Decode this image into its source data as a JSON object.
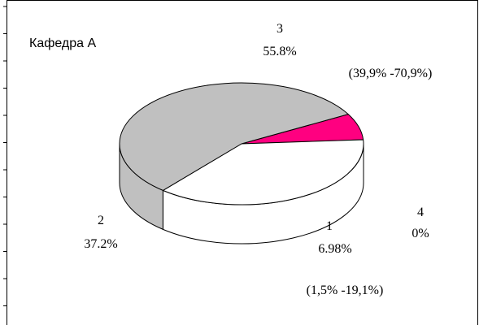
{
  "chart_data": {
    "type": "pie",
    "title": "Кафедра А",
    "slices": [
      {
        "category": "1",
        "value": 6.98,
        "value_label": "6.98%",
        "color": "#ff0080",
        "interval": "(1,5%  -19,1%)"
      },
      {
        "category": "2",
        "value": 37.2,
        "value_label": "37.2%",
        "color": "#ffffff"
      },
      {
        "category": "3",
        "value": 55.8,
        "value_label": "55.8%",
        "color": "#c0c0c0",
        "interval": "(39,9% -70,9%)"
      },
      {
        "category": "4",
        "value": 0,
        "value_label": "0%",
        "color": "#ffffff"
      }
    ]
  }
}
